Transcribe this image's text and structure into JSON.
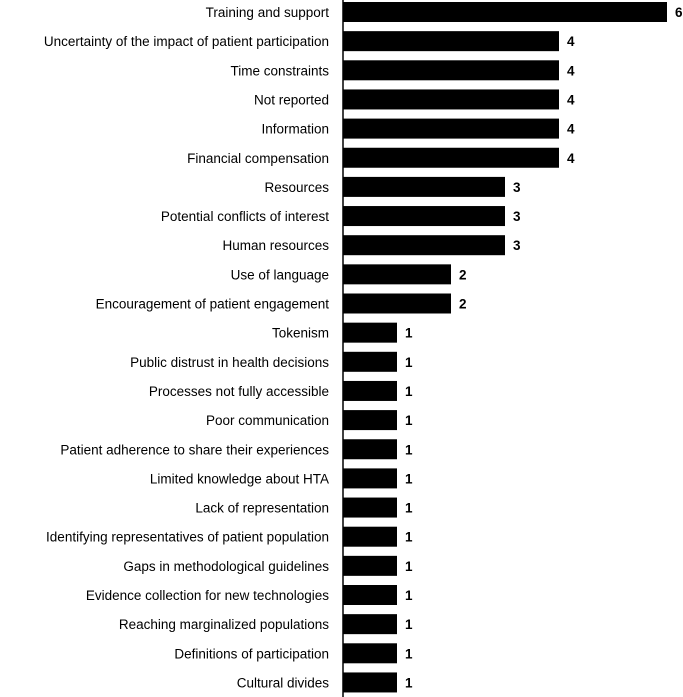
{
  "chart_data": {
    "type": "bar",
    "orientation": "horizontal",
    "categories": [
      "Training and support",
      "Uncertainty of the impact of patient participation",
      "Time constraints",
      "Not reported",
      "Information",
      "Financial compensation",
      "Resources",
      "Potential conflicts of interest",
      "Human resources",
      "Use of language",
      "Encouragement of patient engagement",
      "Tokenism",
      "Public distrust in health decisions",
      "Processes not fully accessible",
      "Poor communication",
      "Patient adherence to share their experiences",
      "Limited knowledge about HTA",
      "Lack of representation",
      "Identifying representatives of patient population",
      "Gaps in methodological guidelines",
      "Evidence collection for new technologies",
      "Reaching marginalized populations",
      "Definitions of participation",
      "Cultural divides"
    ],
    "values": [
      6,
      4,
      4,
      4,
      4,
      4,
      3,
      3,
      3,
      2,
      2,
      1,
      1,
      1,
      1,
      1,
      1,
      1,
      1,
      1,
      1,
      1,
      1,
      1
    ],
    "data_labels": [
      "6",
      "4",
      "4",
      "4",
      "4",
      "4",
      "3",
      "3",
      "3",
      "2",
      "2",
      "1",
      "1",
      "1",
      "1",
      "1",
      "1",
      "1",
      "1",
      "1",
      "1",
      "1",
      "1",
      "1"
    ],
    "title": "",
    "xlabel": "",
    "ylabel": "",
    "xlim": [
      0,
      6
    ],
    "grid": false,
    "bar_color": "#000000"
  }
}
